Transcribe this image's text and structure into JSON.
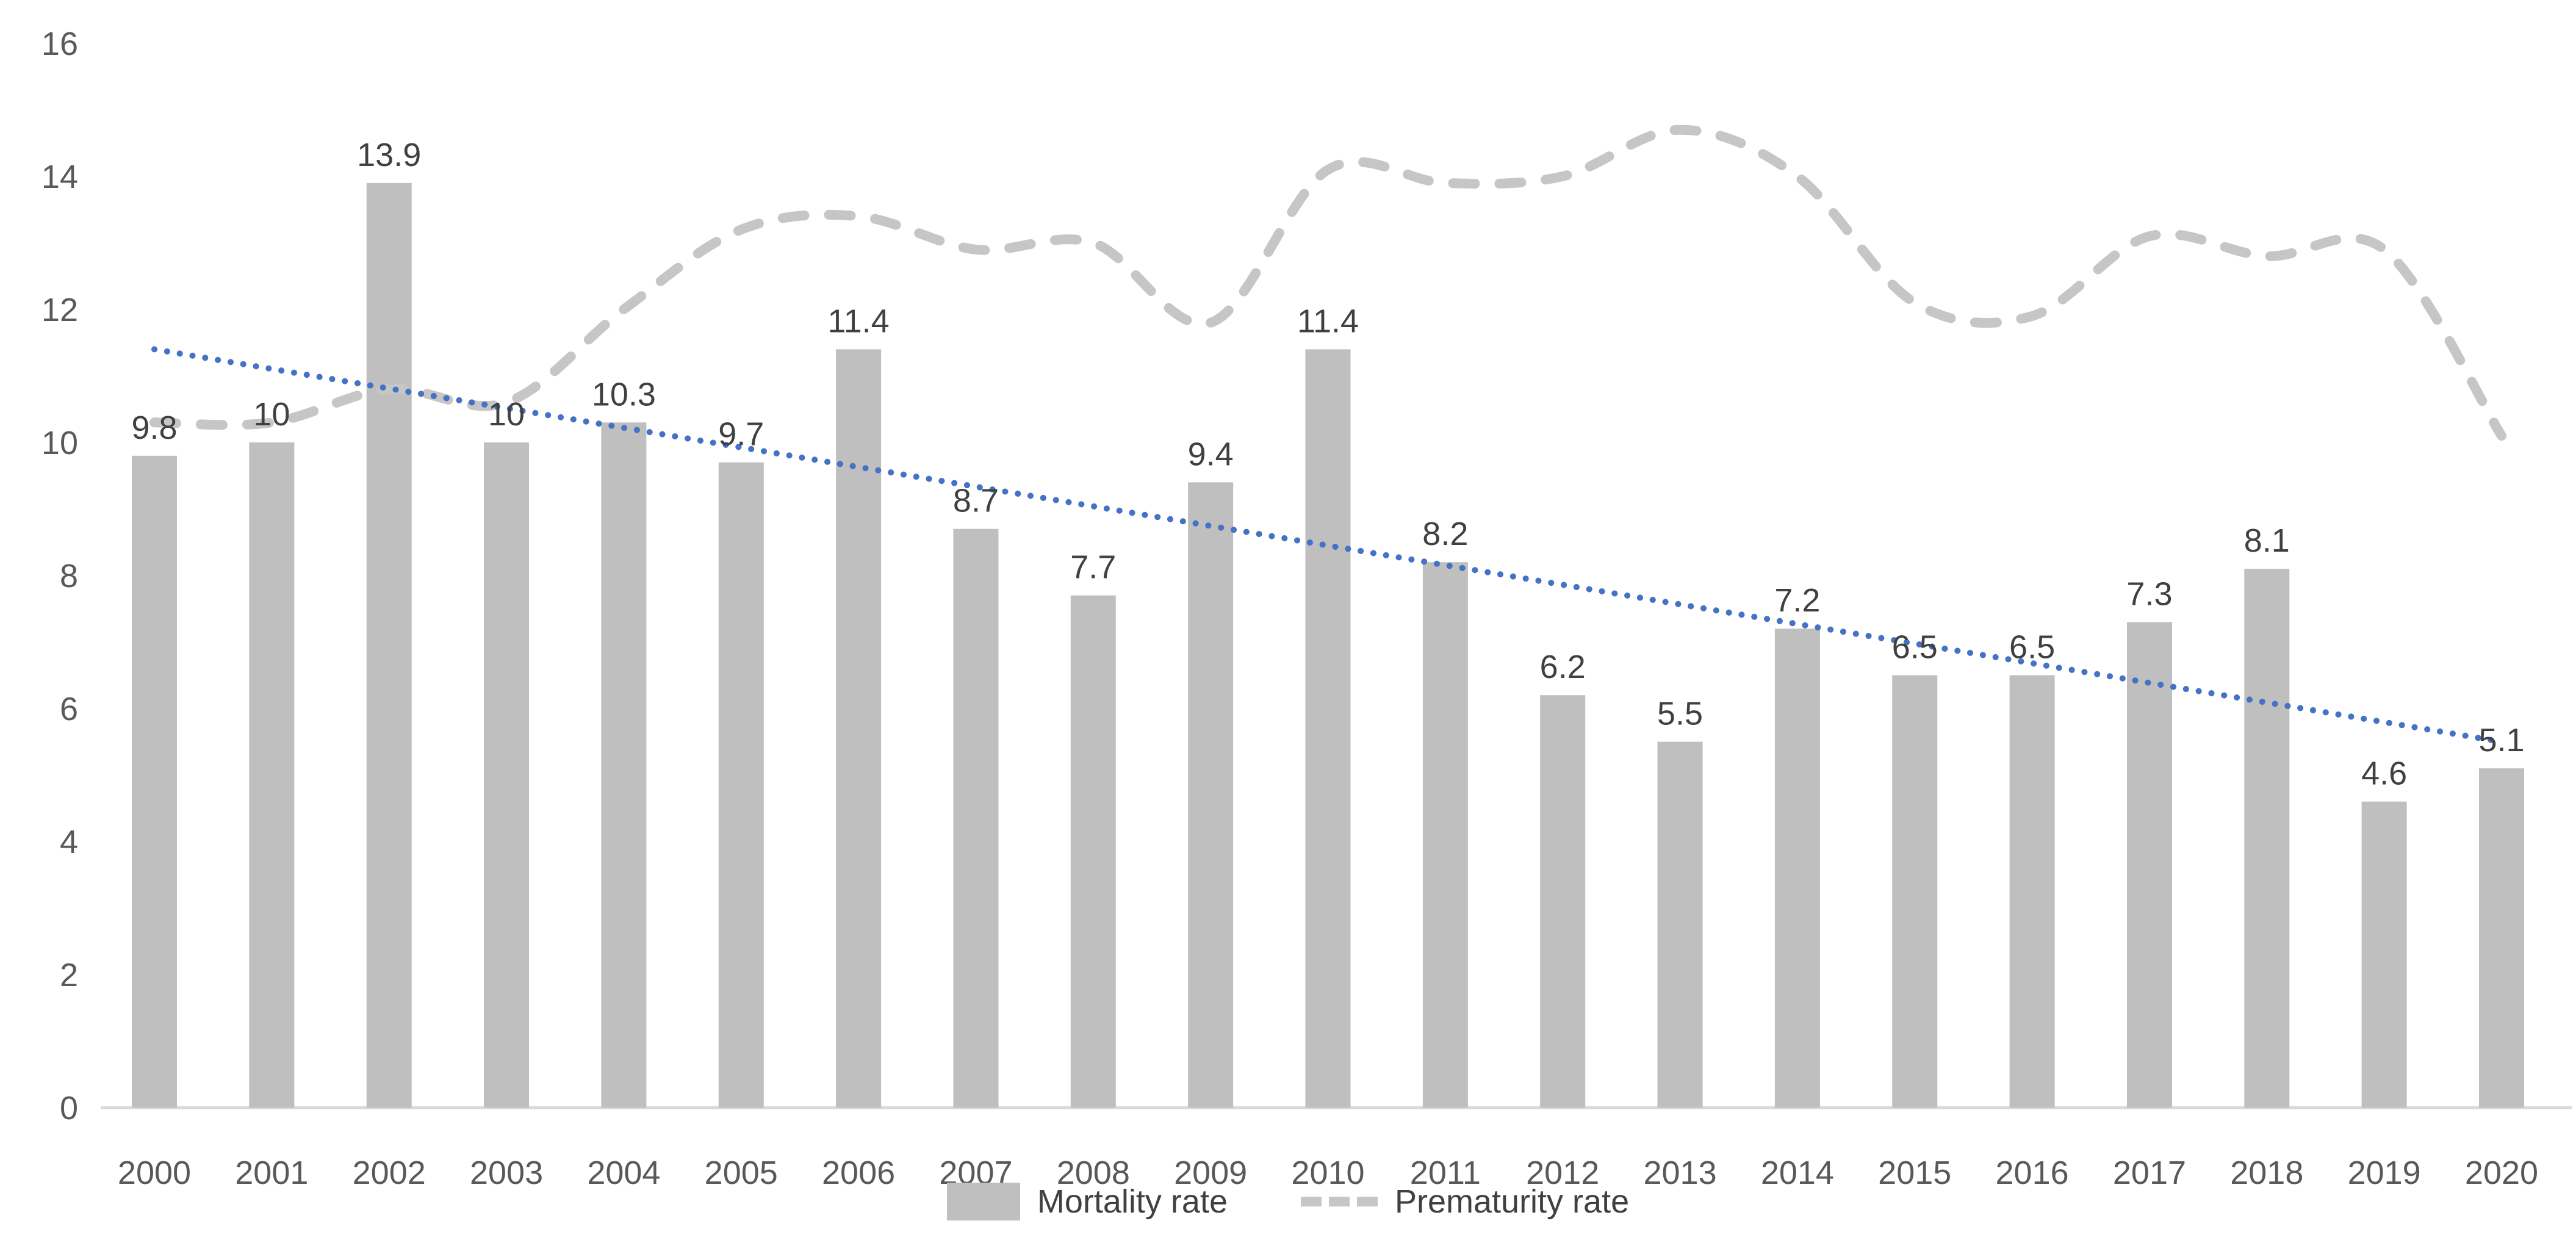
{
  "chart_data": {
    "type": "bar",
    "subtype": "bar-with-smooth-line-and-linear-trendline",
    "title": "",
    "xlabel": "",
    "ylabel": "",
    "categories": [
      2000,
      2001,
      2002,
      2003,
      2004,
      2005,
      2006,
      2007,
      2008,
      2009,
      2010,
      2011,
      2012,
      2013,
      2014,
      2015,
      2016,
      2017,
      2018,
      2019,
      2020
    ],
    "series": [
      {
        "name": "Mortality rate",
        "type": "bar",
        "color": "#bfbfbf",
        "values": [
          9.8,
          10,
          13.9,
          10,
          10.3,
          9.7,
          11.4,
          8.7,
          7.7,
          9.4,
          11.4,
          8.2,
          6.2,
          5.5,
          7.2,
          6.5,
          6.5,
          7.3,
          8.1,
          4.6,
          5.1
        ],
        "data_labels": [
          "9.8",
          "10",
          "13.9",
          "10",
          "10.3",
          "9.7",
          "11.4",
          "8.7",
          "7.7",
          "9.4",
          "11.4",
          "8.2",
          "6.2",
          "5.5",
          "7.2",
          "6.5",
          "6.5",
          "7.3",
          "8.1",
          "4.6",
          "5.1"
        ]
      },
      {
        "name": "Prematurity rate",
        "type": "line",
        "line_style": "dashed",
        "smooth": true,
        "color": "#c6c6c6",
        "values": [
          10.3,
          10.3,
          10.8,
          10.6,
          12.0,
          13.2,
          13.4,
          12.9,
          13.0,
          11.8,
          14.1,
          13.9,
          14.0,
          14.7,
          14.0,
          12.1,
          11.9,
          13.1,
          12.8,
          12.9,
          10.1
        ]
      },
      {
        "name": "mortality-linear-trendline",
        "type": "trendline",
        "line_style": "dotted",
        "color": "#4472c4",
        "start_value": 11.4,
        "end_value": 5.5
      }
    ],
    "ylim": [
      0,
      16
    ],
    "yticks": [
      "0",
      "2",
      "4",
      "6",
      "8",
      "10",
      "12",
      "14",
      "16"
    ],
    "grid": false,
    "legend_position": "bottom"
  },
  "legend": {
    "items": [
      {
        "label": "Mortality rate",
        "swatch": "bar"
      },
      {
        "label": "Prematurity rate",
        "swatch": "dashed-line"
      }
    ]
  },
  "colors": {
    "background": "#ffffff",
    "bar": "#bfbfbf",
    "dashed_line": "#c6c6c6",
    "trendline": "#4472c4",
    "data_label": "#404040",
    "axis_label": "#595959",
    "baseline": "#d9d9d9"
  }
}
